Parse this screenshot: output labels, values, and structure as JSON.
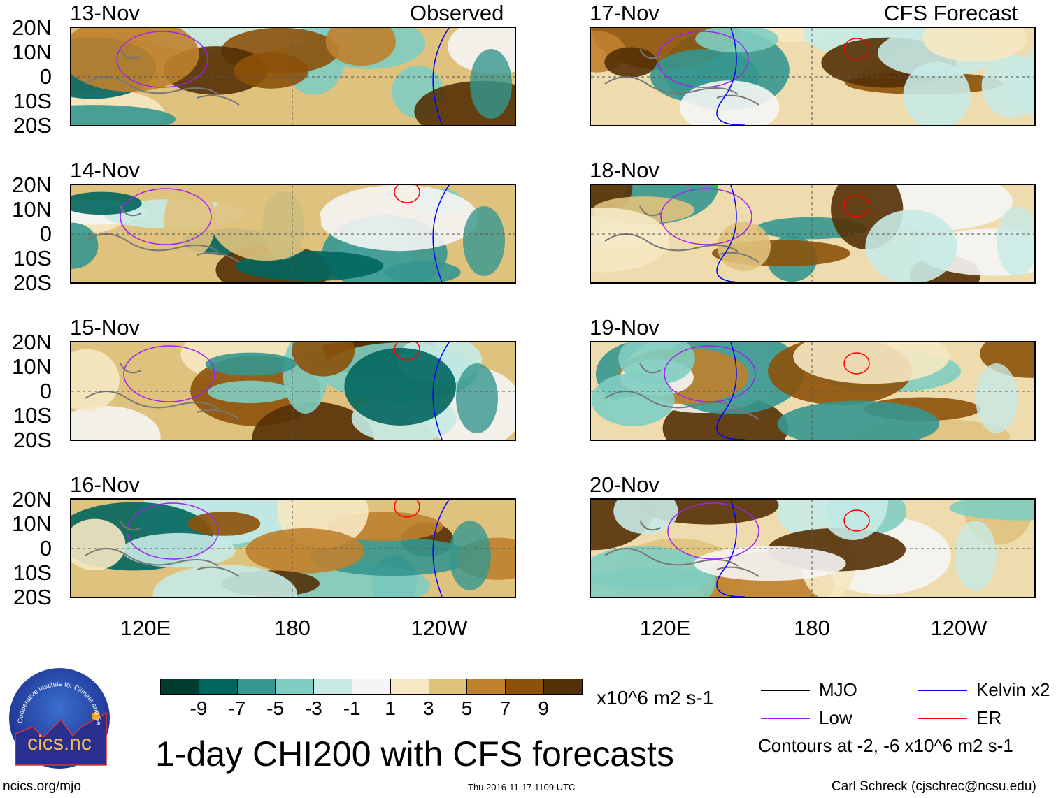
{
  "left_header": "Observed",
  "right_header": "CFS Forecast",
  "lat_labels": [
    "20N",
    "10N",
    "0",
    "10S",
    "20S"
  ],
  "lon_labels": [
    "120E",
    "180",
    "120W"
  ],
  "panels_left": [
    {
      "date": "13-Nov"
    },
    {
      "date": "14-Nov"
    },
    {
      "date": "15-Nov"
    },
    {
      "date": "16-Nov"
    }
  ],
  "panels_right": [
    {
      "date": "17-Nov"
    },
    {
      "date": "18-Nov"
    },
    {
      "date": "19-Nov"
    },
    {
      "date": "20-Nov"
    }
  ],
  "colorbar": {
    "colors": [
      "#003c30",
      "#01665e",
      "#35978f",
      "#80cdc1",
      "#c7eae5",
      "#f5f5f5",
      "#f6e8c3",
      "#dfc27d",
      "#bf812d",
      "#8c510a",
      "#543005"
    ],
    "labels": [
      "-9",
      "-7",
      "-5",
      "-3",
      "-1",
      "1",
      "3",
      "5",
      "7",
      "9"
    ],
    "units": "x10^6 m2 s-1"
  },
  "legend": [
    {
      "label": "MJO",
      "color": "#000000"
    },
    {
      "label": "Kelvin x2",
      "color": "#0000ff"
    },
    {
      "label": "Low",
      "color": "#a020f0"
    },
    {
      "label": "ER",
      "color": "#ff0000"
    }
  ],
  "contours_note": "Contours at -2, -6 x10^6 m2 s-1",
  "title": "1-day CHI200 with CFS forecasts",
  "logo_text": "cics.nc",
  "logo_ring": "Cooperative Institute for Climate and Satellites",
  "url": "ncics.org/mjo",
  "timestamp": "Thu 2016-11-17 1109 UTC",
  "author": "Carl Schreck (cjschrec@ncsu.edu)"
}
